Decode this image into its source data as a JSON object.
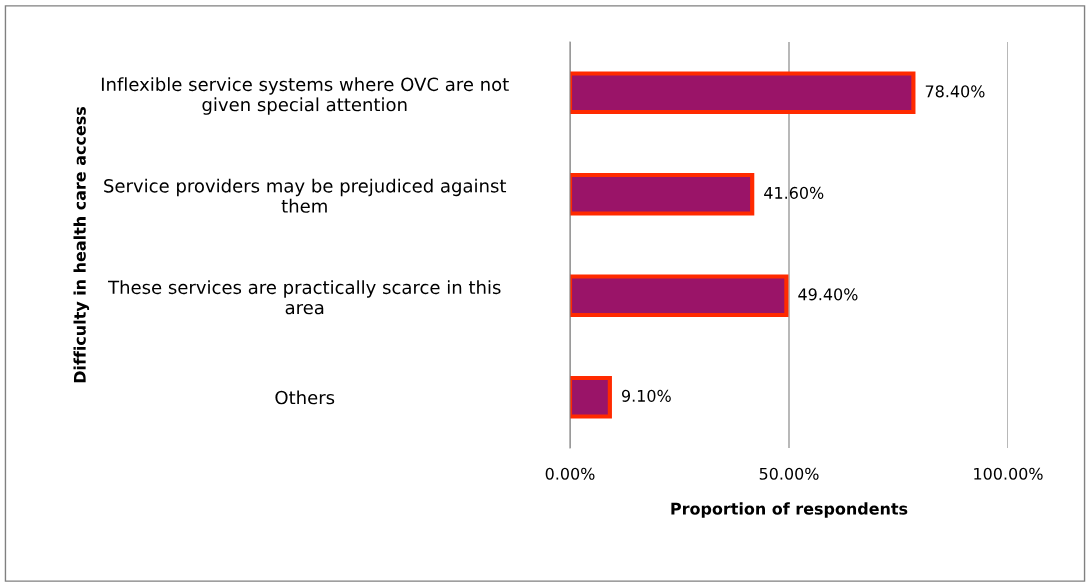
{
  "chart_data": {
    "type": "bar",
    "orientation": "horizontal",
    "categories": [
      "Inflexible service systems where OVC are not\ngiven special attention",
      "Service providers may be prejudiced against\nthem",
      "These services are practically scarce in this\narea",
      "Others"
    ],
    "values": [
      78.4,
      41.6,
      49.4,
      9.1
    ],
    "value_labels": [
      "78.40%",
      "41.60%",
      "49.40%",
      "9.10%"
    ],
    "color": "#9a1468",
    "xlim": [
      0,
      100
    ],
    "xticks": [
      {
        "value": 0,
        "label": "0.00%"
      },
      {
        "value": 50,
        "label": "50.00%"
      },
      {
        "value": 100,
        "label": "100.00%"
      }
    ],
    "xlabel": "Proportion of respondents",
    "ylabel": "Difficulty in health care access",
    "grid": "x"
  }
}
